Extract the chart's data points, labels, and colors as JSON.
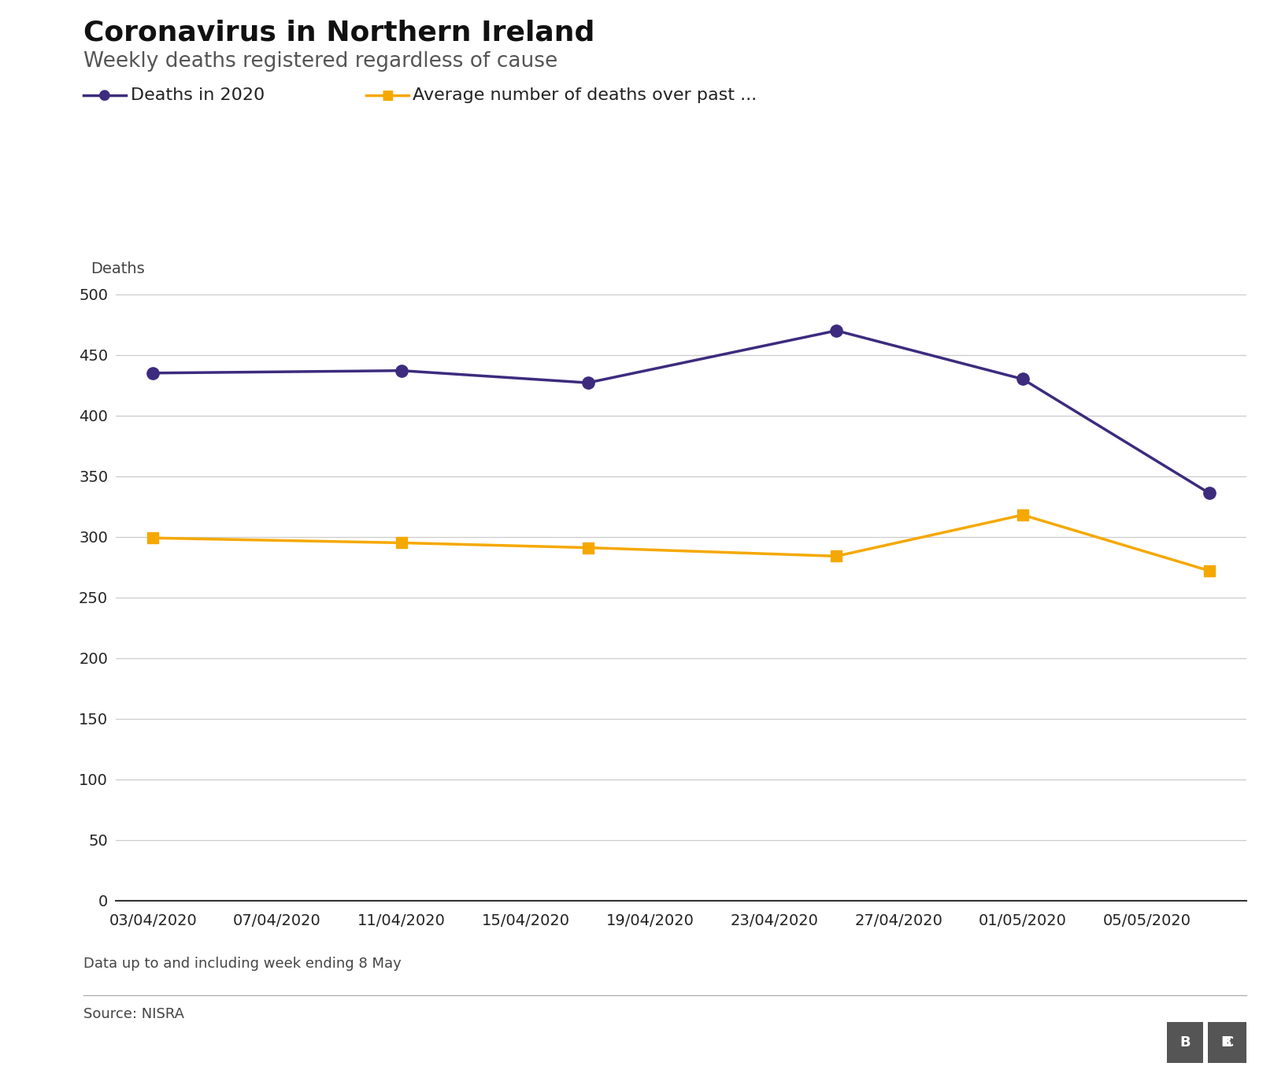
{
  "title": "Coronavirus in Northern Ireland",
  "subtitle": "Weekly deaths registered regardless of cause",
  "ylabel": "Deaths",
  "footnote": "Data up to and including week ending 8 May",
  "source": "Source: NISRA",
  "x_labels": [
    "03/04/2020",
    "07/04/2020",
    "11/04/2020",
    "15/04/2020",
    "19/04/2020",
    "23/04/2020",
    "27/04/2020",
    "01/05/2020",
    "05/05/2020"
  ],
  "purple_color": "#3d2b7e",
  "orange_color": "#f5a800",
  "legend_deaths_label": "Deaths in 2020",
  "legend_avg_label": "Average number of deaths over past ...",
  "purple_x": [
    0,
    2,
    3.5,
    5.5,
    7,
    8.5
  ],
  "purple_y": [
    435,
    437,
    427,
    470,
    430,
    336
  ],
  "orange_x": [
    0,
    2,
    3.5,
    5.5,
    7,
    8.5
  ],
  "orange_y": [
    299,
    295,
    291,
    284,
    318,
    272
  ],
  "yticks": [
    0,
    50,
    100,
    150,
    200,
    250,
    300,
    350,
    400,
    450,
    500
  ],
  "background_color": "#ffffff",
  "grid_color": "#cccccc",
  "title_fontsize": 26,
  "subtitle_fontsize": 19,
  "legend_fontsize": 16,
  "tick_fontsize": 14,
  "ylabel_fontsize": 14,
  "footnote_fontsize": 13,
  "source_fontsize": 13
}
